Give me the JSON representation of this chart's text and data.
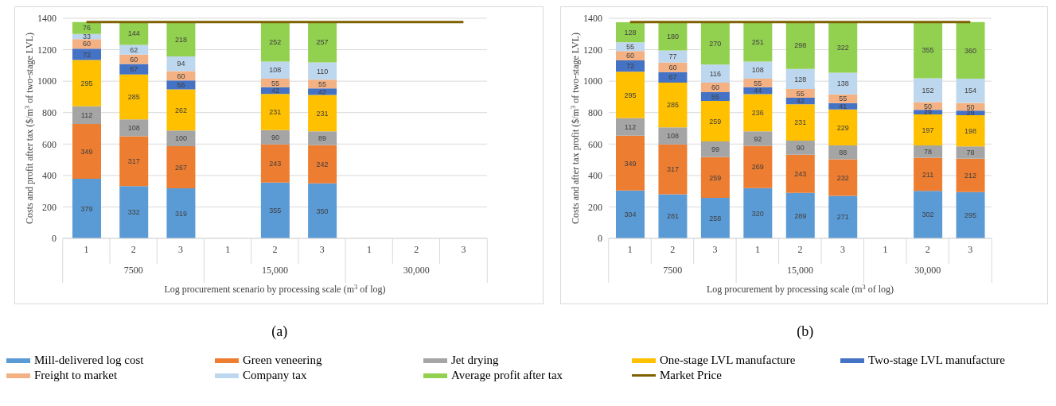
{
  "chart_data": [
    {
      "type": "bar",
      "title": "(a)",
      "stacked": true,
      "data_labels": true,
      "grid": "y",
      "legend": "bottom",
      "xlabel": "Log procurement scenario by processing scale (m$^{3}$ of log)",
      "ylabel": "Costs and profit after tax ($/m$^{3}$ of two-stage LVL)",
      "categories": [
        "1",
        "2",
        "3",
        "1",
        "2",
        "3",
        "1",
        "2",
        "3"
      ],
      "annotations": [
        "7500",
        "15,000",
        "30,000"
      ],
      "ylim": [
        0,
        1400
      ],
      "yticks": [
        0,
        200,
        400,
        600,
        800,
        1000,
        1200,
        1400
      ],
      "series": [
        {
          "name": "Mill-delivered log cost",
          "color": "#5b9bd5",
          "values": [
            379,
            332,
            319,
            null,
            355,
            350,
            null,
            null,
            null
          ]
        },
        {
          "name": "Green veneering",
          "color": "#ed7d31",
          "values": [
            349,
            317,
            267,
            null,
            243,
            242,
            null,
            null,
            null
          ]
        },
        {
          "name": "Jet drying",
          "color": "#a5a5a5",
          "values": [
            112,
            108,
            100,
            null,
            90,
            89,
            null,
            null,
            null
          ]
        },
        {
          "name": "One-stage LVL manufacture",
          "color": "#ffc000",
          "values": [
            295,
            285,
            262,
            null,
            231,
            231,
            null,
            null,
            null
          ]
        },
        {
          "name": "Two-stage LVL manufacture",
          "color": "#4472c4",
          "values": [
            72,
            67,
            56,
            null,
            42,
            42,
            null,
            null,
            null
          ]
        },
        {
          "name": "Freight to market",
          "color": "#f4b183",
          "values": [
            60,
            60,
            60,
            null,
            55,
            55,
            null,
            null,
            null
          ]
        },
        {
          "name": "Company tax",
          "color": "#bdd7ee",
          "values": [
            33,
            62,
            94,
            null,
            108,
            110,
            null,
            null,
            null
          ]
        },
        {
          "name": "Average profit after tax",
          "color": "#92d050",
          "values": [
            76,
            144,
            218,
            null,
            252,
            257,
            null,
            null,
            null
          ]
        },
        {
          "name": "Market Price",
          "type": "line",
          "color": "#7f6000",
          "values": [
            1376,
            1376,
            1376,
            1376,
            1376,
            1376,
            1376,
            1376,
            1376
          ],
          "value_labels": [
            null,
            null,
            null,
            null,
            null,
            null,
            null,
            null,
            null
          ]
        }
      ]
    },
    {
      "type": "bar",
      "title": "(b)",
      "stacked": true,
      "data_labels": true,
      "grid": "y",
      "legend": "bottom",
      "xlabel": "Log procurement by processing scale (m$^{3}$ of log)",
      "ylabel": "Costs and after tax profit ($/m$^{3}$ of two-stage LVL)",
      "categories": [
        "1",
        "2",
        "3",
        "1",
        "2",
        "3",
        "1",
        "2",
        "3"
      ],
      "annotations": [
        "7500",
        "15,000",
        "30,000"
      ],
      "ylim": [
        0,
        1400
      ],
      "yticks": [
        0,
        200,
        400,
        600,
        800,
        1000,
        1200,
        1400
      ],
      "series": [
        {
          "name": "Mill-delivered log cost",
          "color": "#5b9bd5",
          "values": [
            304,
            281,
            258,
            320,
            289,
            271,
            null,
            302,
            295
          ]
        },
        {
          "name": "Green veneering",
          "color": "#ed7d31",
          "values": [
            349,
            317,
            259,
            269,
            243,
            232,
            null,
            211,
            212
          ]
        },
        {
          "name": "Jet drying",
          "color": "#a5a5a5",
          "values": [
            112,
            108,
            99,
            92,
            90,
            88,
            null,
            78,
            78
          ]
        },
        {
          "name": "One-stage LVL manufacture",
          "color": "#ffc000",
          "values": [
            295,
            285,
            259,
            236,
            231,
            229,
            null,
            197,
            198
          ]
        },
        {
          "name": "Two-stage LVL manufacture",
          "color": "#4472c4",
          "values": [
            72,
            67,
            55,
            44,
            42,
            41,
            null,
            29,
            29
          ]
        },
        {
          "name": "Freight to market",
          "color": "#f4b183",
          "values": [
            60,
            60,
            60,
            55,
            55,
            55,
            null,
            50,
            50
          ]
        },
        {
          "name": "Company tax",
          "color": "#bdd7ee",
          "values": [
            55,
            77,
            116,
            108,
            128,
            138,
            null,
            152,
            154
          ]
        },
        {
          "name": "Average profit after tax",
          "color": "#92d050",
          "values": [
            128,
            180,
            270,
            251,
            298,
            322,
            null,
            355,
            360
          ]
        },
        {
          "name": "Market Price",
          "type": "line",
          "color": "#7f6000",
          "values": [
            1376,
            1376,
            1376,
            1376,
            1376,
            1376,
            1376,
            1376,
            1376
          ],
          "value_labels": [
            null,
            null,
            null,
            null,
            null,
            null,
            null,
            null,
            null
          ]
        }
      ]
    }
  ]
}
